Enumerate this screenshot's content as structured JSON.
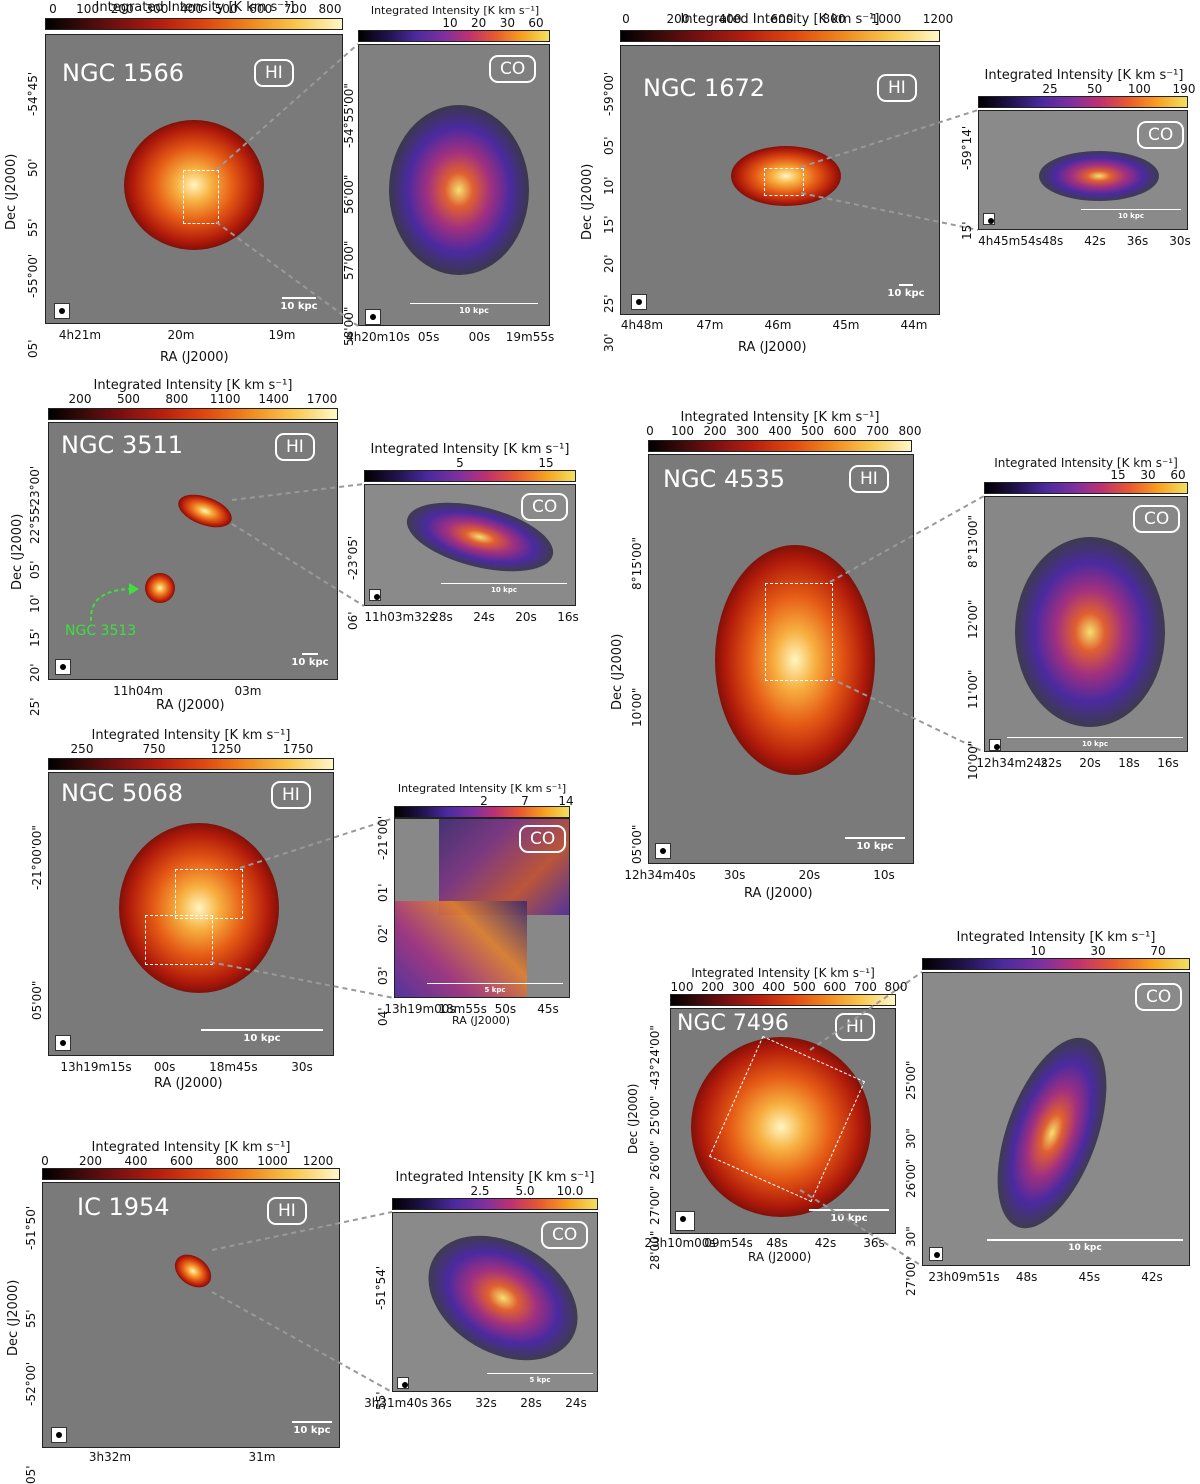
{
  "units": "Integrated Intensity [K km s⁻¹]",
  "hi_tag": "HI",
  "co_tag": "CO",
  "scale_10": "10 kpc",
  "scale_5": "5 kpc",
  "ra_label": "RA (J2000)",
  "dec_label": "Dec (J2000)",
  "ngc1566": {
    "name": "NGC 1566",
    "hi_ticks": [
      "0",
      "100",
      "200",
      "300",
      "400",
      "500",
      "600",
      "700",
      "800"
    ],
    "co_ticks": [
      "10",
      "20",
      "30",
      "60"
    ],
    "hi_dec": [
      "-54°45'",
      "50'",
      "55'",
      "-55°00'",
      "05'"
    ],
    "hi_ra": [
      "4h21m",
      "20m",
      "19m"
    ],
    "co_dec": [
      "-54°55'00\"",
      "56'00\"",
      "57'00\"",
      "58'00\""
    ],
    "co_ra": [
      "4h20m10s",
      "05s",
      "00s",
      "19m55s"
    ]
  },
  "ngc1672": {
    "name": "NGC 1672",
    "hi_ticks": [
      "0",
      "200",
      "400",
      "600",
      "800",
      "1000",
      "1200"
    ],
    "co_ticks": [
      "25",
      "50",
      "100",
      "190"
    ],
    "hi_dec": [
      "-59°00'",
      "05'",
      "10'",
      "15'",
      "20'",
      "25'",
      "30'"
    ],
    "hi_ra": [
      "4h48m",
      "47m",
      "46m",
      "45m",
      "44m"
    ],
    "co_dec": [
      "-59°14'",
      "15'"
    ],
    "co_ra": [
      "4h45m54s",
      "48s",
      "42s",
      "36s",
      "30s"
    ]
  },
  "ngc3511": {
    "name": "NGC 3511",
    "companion": "NGC 3513",
    "hi_ticks": [
      "200",
      "500",
      "800",
      "1100",
      "1400",
      "1700"
    ],
    "co_ticks": [
      "5",
      "15"
    ],
    "hi_dec": [
      "-23°00'",
      "22°55'",
      "05'",
      "10'",
      "15'",
      "20'",
      "25'"
    ],
    "hi_ra": [
      "11h04m",
      "03m"
    ],
    "co_dec": [
      "-23°05'",
      "06'"
    ],
    "co_ra": [
      "11h03m32s",
      "28s",
      "24s",
      "20s",
      "16s"
    ]
  },
  "ngc4535": {
    "name": "NGC 4535",
    "hi_ticks": [
      "0",
      "100",
      "200",
      "300",
      "400",
      "500",
      "600",
      "700",
      "800"
    ],
    "co_ticks": [
      "15",
      "30",
      "60"
    ],
    "hi_dec": [
      "8°15'00\"",
      "10'00\"",
      "05'00\""
    ],
    "hi_ra": [
      "12h34m40s",
      "30s",
      "20s",
      "10s"
    ],
    "co_dec": [
      "8°13'00\"",
      "12'00\"",
      "11'00\"",
      "10'00\""
    ],
    "co_ra": [
      "12h34m24s",
      "22s",
      "20s",
      "18s",
      "16s"
    ]
  },
  "ngc5068": {
    "name": "NGC 5068",
    "hi_ticks": [
      "250",
      "750",
      "1250",
      "1750"
    ],
    "co_ticks": [
      "2",
      "7",
      "14"
    ],
    "hi_dec": [
      "-21°00'00\"",
      "05'00\""
    ],
    "hi_ra": [
      "13h19m15s",
      "00s",
      "18m45s",
      "30s"
    ],
    "co_dec": [
      "-21°00'",
      "01'",
      "02'",
      "03'",
      "04'"
    ],
    "co_ra": [
      "13h19m00s",
      "18m55s",
      "50s",
      "45s"
    ]
  },
  "ngc7496": {
    "name": "NGC 7496",
    "hi_ticks": [
      "100",
      "200",
      "300",
      "400",
      "500",
      "600",
      "700",
      "800"
    ],
    "co_ticks": [
      "10",
      "30",
      "70"
    ],
    "hi_dec": [
      "-43°24'00\"",
      "25'00\"",
      "26'00\"",
      "27'00\"",
      "28'00\""
    ],
    "hi_ra": [
      "23h10m00s",
      "09m54s",
      "48s",
      "42s",
      "36s"
    ],
    "co_dec": [
      "25'00\"",
      "30\"",
      "26'00\"",
      "30\"",
      "27'00\""
    ],
    "co_ra": [
      "23h09m51s",
      "48s",
      "45s",
      "42s"
    ]
  },
  "ic1954": {
    "name": "IC 1954",
    "hi_ticks": [
      "0",
      "200",
      "400",
      "600",
      "800",
      "1000",
      "1200"
    ],
    "co_ticks": [
      "2.5",
      "5.0",
      "10.0"
    ],
    "hi_dec": [
      "-51°50'",
      "55'",
      "-52°00'",
      "05'"
    ],
    "hi_ra": [
      "3h32m",
      "31m"
    ],
    "co_dec": [
      "-51°54'",
      "55'"
    ],
    "co_ra": [
      "3h31m40s",
      "36s",
      "32s",
      "28s",
      "24s"
    ]
  }
}
